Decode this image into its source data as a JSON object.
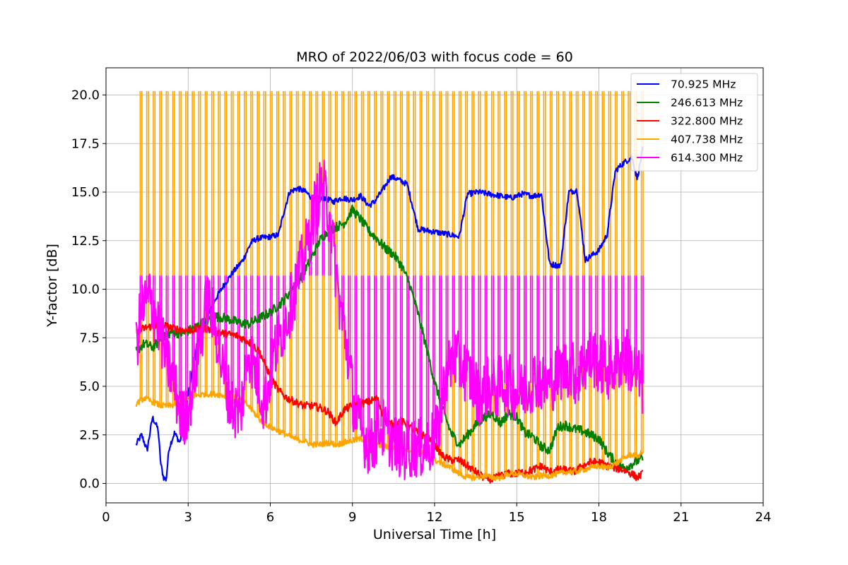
{
  "chart_data": {
    "type": "line",
    "title": "MRO of 2022/06/03 with focus code = 60",
    "xlabel": "Universal Time [h]",
    "ylabel": "Y-factor [dB]",
    "xlim": [
      0,
      24
    ],
    "ylim": [
      -1.0,
      21.4
    ],
    "xticks": [
      0,
      3,
      6,
      9,
      12,
      15,
      18,
      21,
      24
    ],
    "xtick_labels": [
      "0",
      "3",
      "6",
      "9",
      "12",
      "15",
      "18",
      "21",
      "24"
    ],
    "yticks": [
      0,
      2.5,
      5,
      7.5,
      10,
      12.5,
      15,
      17.5,
      20
    ],
    "ytick_labels": [
      "0.0",
      "2.5",
      "5.0",
      "7.5",
      "10.0",
      "12.5",
      "15.0",
      "17.5",
      "20.0"
    ],
    "grid": true,
    "legend_position": "top-right",
    "series": [
      {
        "name": "  70.925 MHz",
        "color": "#0000ff",
        "x": [
          1.1,
          1.3,
          1.5,
          1.7,
          1.9,
          2.0,
          2.1,
          2.2,
          2.3,
          2.5,
          2.7,
          3.0,
          3.3,
          3.6,
          4.0,
          4.3,
          4.6,
          5.0,
          5.3,
          5.5,
          6.0,
          6.3,
          6.5,
          6.7,
          7.0,
          7.3,
          7.6,
          8.0,
          8.3,
          8.6,
          9.0,
          9.3,
          9.6,
          9.8,
          10.1,
          10.4,
          10.6,
          11.0,
          11.4,
          11.8,
          12.2,
          12.6,
          12.9,
          13.2,
          13.6,
          14.0,
          14.4,
          14.8,
          15.2,
          15.6,
          15.9,
          16.2,
          16.6,
          16.9,
          17.2,
          17.5,
          17.8,
          18.0,
          18.3,
          18.6,
          18.9,
          19.2,
          19.4,
          19.6
        ],
        "y": [
          2.0,
          2.5,
          1.7,
          3.4,
          2.8,
          1.0,
          0.3,
          0.2,
          1.8,
          2.6,
          2.1,
          4.5,
          7.0,
          8.3,
          9.5,
          10.2,
          10.8,
          11.5,
          12.4,
          12.6,
          12.7,
          12.8,
          14.0,
          15.0,
          15.2,
          15.0,
          14.6,
          14.7,
          14.5,
          14.7,
          14.6,
          14.8,
          14.3,
          14.5,
          15.1,
          15.8,
          15.7,
          15.4,
          13.1,
          13.0,
          12.9,
          12.8,
          12.7,
          14.9,
          15.0,
          14.9,
          14.8,
          14.7,
          14.9,
          14.8,
          14.9,
          11.3,
          11.2,
          15.0,
          15.1,
          11.5,
          11.8,
          12.0,
          12.8,
          16.1,
          16.5,
          16.8,
          15.7,
          17.2
        ]
      },
      {
        "name": "246.613 MHz",
        "color": "#008000",
        "x": [
          1.1,
          1.4,
          1.7,
          2.0,
          2.4,
          2.8,
          3.2,
          3.6,
          4.0,
          4.4,
          4.8,
          5.2,
          5.6,
          6.0,
          6.4,
          6.8,
          7.2,
          7.5,
          7.8,
          8.1,
          8.4,
          8.7,
          9.0,
          9.3,
          9.6,
          9.9,
          10.2,
          10.5,
          10.8,
          11.1,
          11.4,
          11.7,
          12.0,
          12.3,
          12.6,
          12.9,
          13.2,
          13.5,
          13.8,
          14.1,
          14.4,
          14.7,
          15.0,
          15.3,
          15.6,
          15.9,
          16.2,
          16.5,
          16.8,
          17.1,
          17.4,
          17.7,
          18.0,
          18.3,
          18.6,
          18.9,
          19.2,
          19.6
        ],
        "y": [
          6.8,
          7.2,
          7.0,
          7.4,
          7.8,
          7.7,
          8.0,
          8.3,
          8.6,
          8.5,
          8.3,
          8.2,
          8.5,
          8.8,
          9.3,
          10.0,
          10.8,
          11.6,
          12.5,
          13.0,
          13.2,
          13.4,
          14.1,
          13.6,
          13.0,
          12.6,
          12.1,
          11.8,
          11.2,
          10.2,
          8.7,
          7.0,
          5.2,
          3.8,
          2.6,
          2.0,
          2.5,
          3.0,
          3.4,
          3.6,
          3.1,
          3.6,
          3.4,
          2.6,
          2.4,
          1.9,
          1.7,
          2.9,
          3.0,
          2.8,
          2.7,
          2.5,
          2.3,
          1.6,
          1.1,
          0.8,
          1.0,
          1.3
        ]
      },
      {
        "name": "322.800 MHz",
        "color": "#ff0000",
        "x": [
          1.1,
          1.4,
          1.7,
          2.0,
          2.4,
          2.8,
          3.2,
          3.6,
          4.0,
          4.4,
          4.8,
          5.2,
          5.6,
          6.0,
          6.3,
          6.6,
          6.9,
          7.2,
          7.5,
          7.8,
          8.1,
          8.4,
          8.7,
          9.0,
          9.3,
          9.6,
          9.9,
          10.2,
          10.5,
          10.8,
          11.1,
          11.4,
          11.7,
          12.0,
          12.3,
          12.6,
          12.9,
          13.2,
          13.5,
          13.8,
          14.1,
          14.4,
          14.7,
          15.0,
          15.3,
          15.6,
          15.9,
          16.2,
          16.5,
          16.8,
          17.1,
          17.4,
          17.7,
          18.0,
          18.3,
          18.6,
          18.9,
          19.2,
          19.4,
          19.6
        ],
        "y": [
          7.8,
          8.0,
          8.1,
          8.2,
          8.0,
          7.9,
          7.9,
          8.0,
          7.8,
          7.7,
          7.6,
          7.3,
          6.8,
          5.5,
          4.8,
          4.4,
          4.2,
          4.0,
          4.0,
          3.9,
          3.7,
          3.1,
          3.8,
          4.0,
          4.1,
          4.2,
          4.4,
          3.2,
          3.0,
          3.2,
          2.9,
          2.6,
          2.4,
          2.0,
          1.4,
          1.2,
          1.2,
          0.9,
          0.6,
          0.3,
          0.2,
          0.4,
          0.5,
          0.5,
          0.6,
          0.7,
          0.9,
          0.6,
          0.7,
          0.7,
          0.6,
          0.9,
          1.1,
          1.1,
          0.9,
          0.8,
          0.7,
          0.5,
          0.3,
          0.5
        ]
      },
      {
        "name": "407.738 MHz",
        "color": "#ffa500",
        "x": [
          1.1,
          1.4,
          1.7,
          2.0,
          2.4,
          2.8,
          3.2,
          3.6,
          4.0,
          4.4,
          4.8,
          5.2,
          5.6,
          6.0,
          6.3,
          6.6,
          6.9,
          7.2,
          7.5,
          7.8,
          8.1,
          8.4,
          8.7,
          9.0,
          9.3,
          9.6,
          9.9,
          10.2,
          10.5,
          10.8,
          11.1,
          11.4,
          11.7,
          12.0,
          12.3,
          12.6,
          12.9,
          13.2,
          13.5,
          13.8,
          14.1,
          14.4,
          14.7,
          15.0,
          15.3,
          15.6,
          15.9,
          16.2,
          16.5,
          16.8,
          17.1,
          17.4,
          17.7,
          18.0,
          18.3,
          18.6,
          18.9,
          19.2,
          19.4,
          19.6
        ],
        "y": [
          4.1,
          4.4,
          4.2,
          4.0,
          4.0,
          4.3,
          4.5,
          4.6,
          4.6,
          4.5,
          4.4,
          4.0,
          3.3,
          2.9,
          2.7,
          2.5,
          2.3,
          2.2,
          2.0,
          2.0,
          2.1,
          2.0,
          2.1,
          2.2,
          2.3,
          2.2,
          2.0,
          1.9,
          1.8,
          1.9,
          1.7,
          1.6,
          1.5,
          1.2,
          1.0,
          0.8,
          0.5,
          0.3,
          0.3,
          0.4,
          0.3,
          0.3,
          0.5,
          0.5,
          0.4,
          0.3,
          0.4,
          0.4,
          0.5,
          0.6,
          0.6,
          0.7,
          0.8,
          0.9,
          0.8,
          1.0,
          1.3,
          1.5,
          1.4,
          1.6
        ]
      },
      {
        "name": "614.300 MHz",
        "color": "#ff00ff",
        "x": [
          1.1,
          1.3,
          1.6,
          1.9,
          2.2,
          2.5,
          2.8,
          3.1,
          3.4,
          3.7,
          4.0,
          4.3,
          4.6,
          4.9,
          5.2,
          5.5,
          5.8,
          6.1,
          6.4,
          6.7,
          7.0,
          7.3,
          7.6,
          7.9,
          8.2,
          8.5,
          8.8,
          9.1,
          9.4,
          9.7,
          10.0,
          10.3,
          10.6,
          10.9,
          11.2,
          11.5,
          11.8,
          12.1,
          12.4,
          12.7,
          13.0,
          13.3,
          13.6,
          13.9,
          14.2,
          14.5,
          14.8,
          15.1,
          15.4,
          15.7,
          16.0,
          16.3,
          16.6,
          16.9,
          17.2,
          17.5,
          17.8,
          18.1,
          18.4,
          18.7,
          19.0,
          19.3,
          19.6
        ],
        "y": [
          7.0,
          9.0,
          9.5,
          8.2,
          6.5,
          5.0,
          3.2,
          4.5,
          7.0,
          9.5,
          8.0,
          5.5,
          4.0,
          3.5,
          7.0,
          5.5,
          4.0,
          6.5,
          7.8,
          9.0,
          10.5,
          12.0,
          14.0,
          15.5,
          13.5,
          9.5,
          7.0,
          3.5,
          2.5,
          1.8,
          3.0,
          2.5,
          2.0,
          1.7,
          1.9,
          1.8,
          2.0,
          2.5,
          5.5,
          6.5,
          6.0,
          5.5,
          4.5,
          5.0,
          4.8,
          5.2,
          5.0,
          4.6,
          5.0,
          5.5,
          5.0,
          5.3,
          5.8,
          6.0,
          5.5,
          6.2,
          6.5,
          6.0,
          5.8,
          6.3,
          6.5,
          5.8,
          5.0
        ]
      }
    ],
    "annotations": [
      {
        "series": "407.738 MHz",
        "note": "periodic spikes",
        "start": 1.25,
        "end": 19.55,
        "count": 78,
        "peak": 20.2
      },
      {
        "series": "614.300 MHz",
        "note": "periodic spikes",
        "start": 1.25,
        "end": 19.55,
        "count": 78,
        "peak": 10.7
      }
    ]
  }
}
